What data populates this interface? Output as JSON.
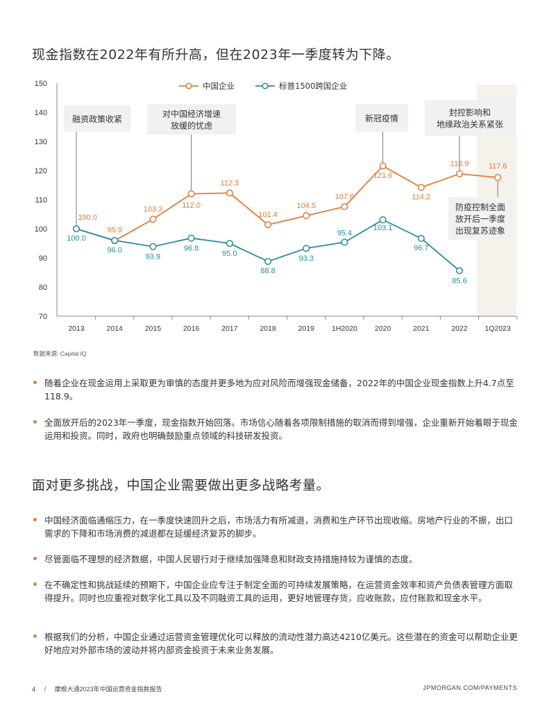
{
  "titles": {
    "top": "现金指数在2022年有所升高，但在2023年一季度转为下降。",
    "mid": "面对更多挑战，中国企业需要做出更多战略考量。"
  },
  "chart_data": {
    "type": "line",
    "categories": [
      "2013",
      "2014",
      "2015",
      "2016",
      "2017",
      "2018",
      "2019",
      "1H2020",
      "2020",
      "2021",
      "2022",
      "1Q2023"
    ],
    "ylim": [
      70,
      150
    ],
    "yticks": [
      "70",
      "80",
      "90",
      "100",
      "110",
      "120",
      "130",
      "140",
      "150"
    ],
    "series": [
      {
        "name": "中国企业",
        "color": "#e07b3a",
        "values": [
          100.0,
          95.9,
          103.3,
          112.0,
          112.3,
          101.4,
          104.5,
          107.6,
          121.6,
          114.2,
          118.9,
          117.6
        ],
        "labels": [
          "100.0",
          "95.9",
          "103.3",
          "112.0",
          "112.3",
          "101.4",
          "104.5",
          "107.6",
          "121.6",
          "114.2",
          "118.9",
          "117.6"
        ]
      },
      {
        "name": "标普1500跨国企业",
        "color": "#2a8aa0",
        "values": [
          100.0,
          96.0,
          93.9,
          96.8,
          95.0,
          88.8,
          93.3,
          95.4,
          103.1,
          96.7,
          85.6,
          null
        ],
        "labels": [
          "100.0",
          "96.0",
          "93.9",
          "96.8",
          "95.0",
          "88.8",
          "93.3",
          "95.4",
          "103.1",
          "96.7",
          "85.6",
          ""
        ]
      }
    ],
    "annotations": [
      {
        "lines": [
          "融资政策收紧"
        ],
        "category": "2013"
      },
      {
        "lines": [
          "对中国经济增速",
          "放缓的忧虑"
        ],
        "category": "2016"
      },
      {
        "lines": [
          "新冠疫情"
        ],
        "category": "2020"
      },
      {
        "lines": [
          "封控影响和",
          "地缘政治关系紧张"
        ],
        "category": "2022"
      },
      {
        "lines": [
          "防疫控制全面",
          "放开后一季度",
          "出现复苏迹象"
        ],
        "category": "1Q2023"
      }
    ]
  },
  "source": "数据来源: Capital IQ",
  "bullets_top": [
    "随着企业在现金运用上采取更为审慎的态度并更多地为应对风险而增强现金储备，2022年的中国企业现金指数上升4.7点至118.9。",
    "全面放开后的2023年一季度，现金指数开始回落。市场信心随着各项限制措施的取消而得到增强，企业重新开始着眼于现金运用和投资。同时，政府也明确鼓励重点领域的科技研发投资。"
  ],
  "bullets_bottom": [
    "中国经济面临通缩压力，在一季度快速回升之后，市场活力有所减退，消费和生产环节出现收缩。房地产行业的不振，出口需求的下降和市场消费的减退都在延缓经济复苏的脚步。",
    "尽管面临不理想的经济数据，中国人民银行对于继续加强降息和财政支持措施持较为谨慎的态度。",
    "在不确定性和挑战延续的预期下，中国企业应专注于制定全面的可持续发展策略，在运营资金效率和资产负债表管理方面取得提升。同时也应重视对数字化工具以及不同融资工具的运用，更好地管理存货，应收账款，应付账款和现金水平。",
    "根据我们的分析，中国企业通过运营资金管理优化可以释放的流动性潜力高达4210亿美元。这些潜在的资金可以帮助企业更好地应对外部市场的波动并将内部资金投资于未来业务发展。"
  ],
  "footer": {
    "page": "4",
    "separator": "/",
    "report": "摩根大通2023年中国运营资金指数报告",
    "site": "JPMORGAN.COM/PAYMENTS"
  }
}
